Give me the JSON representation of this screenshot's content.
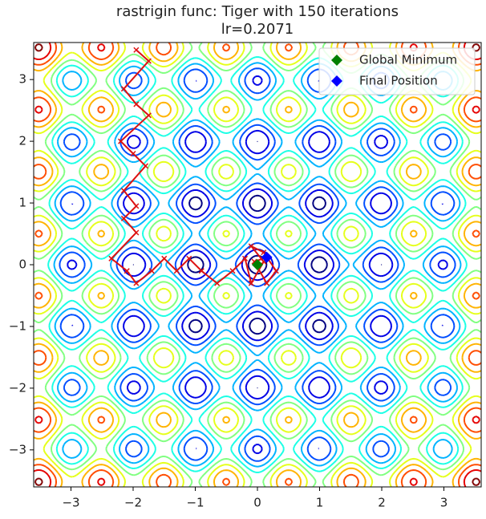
{
  "chart_data": {
    "type": "contour",
    "title": "rastrigin func: Tiger with 150 iterations",
    "subtitle": "lr=0.2071",
    "xlim": [
      -3.6,
      3.6
    ],
    "ylim": [
      -3.6,
      3.6
    ],
    "xticks": [
      {
        "value": -3,
        "label": "−3"
      },
      {
        "value": -2,
        "label": "−2"
      },
      {
        "value": -1,
        "label": "−1"
      },
      0,
      1,
      2,
      3
    ],
    "yticks": [
      {
        "value": -3,
        "label": "−3"
      },
      {
        "value": -2,
        "label": "−2"
      },
      {
        "value": -1,
        "label": "−1"
      },
      0,
      1,
      2,
      3
    ],
    "path": {
      "color": "#dd1111",
      "x": [
        -1.95,
        -1.75,
        -2.15,
        -1.95,
        -1.75,
        -2.2,
        -2.0,
        -1.8,
        -2.15,
        -1.95,
        -2.15,
        -1.95,
        -2.35,
        -2.1,
        -1.95,
        -1.7,
        -1.5,
        -1.3,
        -1.1,
        -0.9,
        -0.65,
        -0.4,
        -0.2,
        -0.1,
        0.1,
        -0.1,
        0.1,
        0.3,
        0.15,
        -0.05,
        0.15
      ],
      "y": [
        3.48,
        3.3,
        2.85,
        2.6,
        2.42,
        2.0,
        1.8,
        1.6,
        1.2,
        0.95,
        0.75,
        0.52,
        0.1,
        -0.1,
        -0.3,
        -0.1,
        0.1,
        -0.1,
        0.1,
        -0.1,
        -0.3,
        -0.1,
        0.1,
        -0.3,
        0.05,
        0.3,
        0.2,
        -0.1,
        -0.3,
        0.05,
        0.12
      ]
    },
    "points": [
      {
        "name": "Global Minimum",
        "color": "#008000",
        "x": 0,
        "y": 0
      },
      {
        "name": "Final Position",
        "color": "#0000ff",
        "x": 0.15,
        "y": 0.12
      }
    ],
    "legend": "upper right"
  }
}
